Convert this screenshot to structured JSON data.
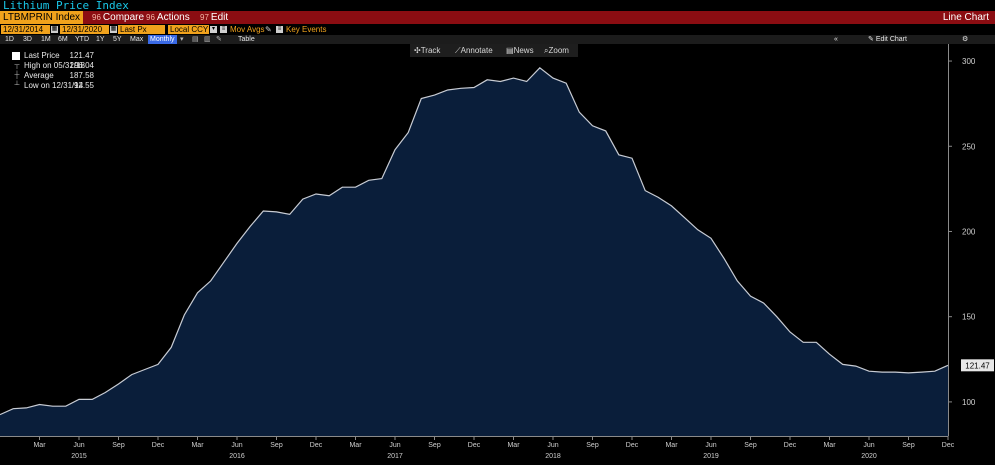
{
  "window": {
    "title": "Lithium Price Index",
    "chart_type_label": "Line Chart"
  },
  "toolbar_top": {
    "ticker": "LTBMPRIN Index",
    "compare_num": "96",
    "compare": "Compare",
    "actions_num": "96",
    "actions": "Actions",
    "edit_num": "97",
    "edit": "Edit"
  },
  "controls": {
    "start_date": "12/31/2014",
    "end_date": "12/31/2020",
    "field": "Last Px",
    "currency": "Local CCY",
    "mov_avgs": "Mov Avgs",
    "key_events": "Key Events"
  },
  "ranges": {
    "items": [
      "1D",
      "3D",
      "1M",
      "6M",
      "YTD",
      "1Y",
      "5Y",
      "Max"
    ],
    "selected": "Monthly",
    "table": "Table",
    "edit_chart": "Edit Chart"
  },
  "chart_toolbar": {
    "track": "Track",
    "annotate": "Annotate",
    "news": "News",
    "zoom": "Zoom"
  },
  "legend": {
    "last_label": "Last Price",
    "last_value": "121.47",
    "high_label": "High on 05/31/18",
    "high_value": "296.04",
    "avg_label": "Average",
    "avg_value": "187.58",
    "low_label": "Low on 12/31/14",
    "low_value": "92.55"
  },
  "colors": {
    "background": "#000000",
    "area_fill": "#0a1e3a",
    "line": "#c8ccd4",
    "accent": "#f0a21c",
    "menu": "#8b0d12"
  },
  "chart_data": {
    "type": "area",
    "title": "Lithium Price Index",
    "xlabel": "",
    "ylabel": "",
    "ylim": [
      80,
      310
    ],
    "yticks": [
      100,
      150,
      200,
      250,
      300
    ],
    "last_value_label": "121.47",
    "x_tick_labels": [
      "Mar",
      "Jun",
      "Sep",
      "Dec",
      "Mar",
      "Jun",
      "Sep",
      "Dec",
      "Mar",
      "Jun",
      "Sep",
      "Dec",
      "Mar",
      "Jun",
      "Sep",
      "Dec",
      "Mar",
      "Jun",
      "Sep",
      "Dec",
      "Mar",
      "Jun",
      "Sep",
      "Dec"
    ],
    "x_tick_months": [
      3,
      6,
      9,
      12,
      15,
      18,
      21,
      24,
      27,
      30,
      33,
      36,
      39,
      42,
      45,
      48,
      51,
      54,
      57,
      60,
      63,
      66,
      69,
      72
    ],
    "year_labels": [
      "2015",
      "2016",
      "2017",
      "2018",
      "2019",
      "2020"
    ],
    "year_label_months": [
      6,
      18,
      30,
      42,
      54,
      66
    ],
    "grid": false,
    "series": [
      {
        "x": [
          "2014-12",
          "2015-01",
          "2015-02",
          "2015-03",
          "2015-04",
          "2015-05",
          "2015-06",
          "2015-07",
          "2015-08",
          "2015-09",
          "2015-10",
          "2015-11",
          "2015-12",
          "2016-01",
          "2016-02",
          "2016-03",
          "2016-04",
          "2016-05",
          "2016-06",
          "2016-07",
          "2016-08",
          "2016-09",
          "2016-10",
          "2016-11",
          "2016-12",
          "2017-01",
          "2017-02",
          "2017-03",
          "2017-04",
          "2017-05",
          "2017-06",
          "2017-07",
          "2017-08",
          "2017-09",
          "2017-10",
          "2017-11",
          "2017-12",
          "2018-01",
          "2018-02",
          "2018-03",
          "2018-04",
          "2018-05",
          "2018-06",
          "2018-07",
          "2018-08",
          "2018-09",
          "2018-10",
          "2018-11",
          "2018-12",
          "2019-01",
          "2019-02",
          "2019-03",
          "2019-04",
          "2019-05",
          "2019-06",
          "2019-07",
          "2019-08",
          "2019-09",
          "2019-10",
          "2019-11",
          "2019-12",
          "2020-01",
          "2020-02",
          "2020-03",
          "2020-04",
          "2020-05",
          "2020-06",
          "2020-07",
          "2020-08",
          "2020-09",
          "2020-10",
          "2020-11",
          "2020-12"
        ],
        "values": [
          92.55,
          96,
          96.5,
          98.5,
          97.5,
          97.5,
          101.5,
          101.5,
          105.5,
          110.5,
          116,
          119,
          122,
          132,
          151,
          164,
          171,
          182,
          193,
          203,
          212,
          211.5,
          210,
          219,
          222,
          221,
          226,
          226,
          230,
          231,
          248,
          258,
          278,
          280,
          283,
          284,
          284.5,
          289,
          288,
          290,
          288,
          296.04,
          290,
          287,
          270,
          262,
          259,
          245,
          243,
          224,
          220,
          215,
          208,
          201,
          196,
          184,
          171,
          162,
          158,
          150,
          141,
          135,
          135,
          128,
          122,
          121,
          118,
          117.5,
          117.5,
          117,
          117.5,
          118,
          121.47
        ]
      }
    ]
  }
}
